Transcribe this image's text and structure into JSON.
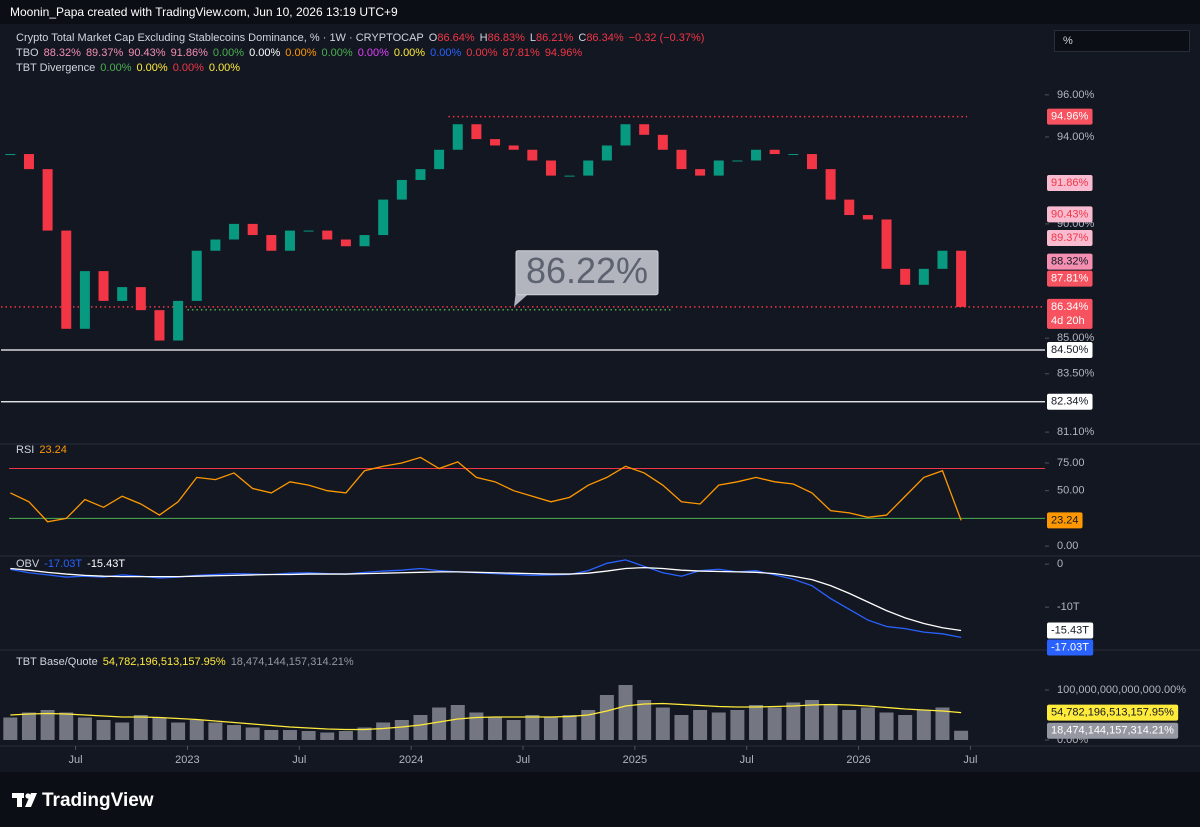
{
  "header": {
    "attribution": "Moonin_Papa created with TradingView.com, Jun 10, 2026 13:19 UTC+9",
    "scale_button": "%"
  },
  "legend": {
    "symbol": "Crypto Total Market Cap Excluding Stablecoins Dominance, % · 1W · CRYPTOCAP",
    "ohlc": [
      {
        "key": "O",
        "value": "86.64%"
      },
      {
        "key": "H",
        "value": "86.83%"
      },
      {
        "key": "L",
        "value": "86.21%"
      },
      {
        "key": "C",
        "value": "86.34%"
      }
    ],
    "change": "−0.32 (−0.37%)",
    "tbo": {
      "name": "TBO",
      "values": [
        "88.32%",
        "89.37%",
        "90.43%",
        "91.86%",
        "0.00%",
        "0.00%",
        "0.00%",
        "0.00%",
        "0.00%",
        "0.00%",
        "0.00%",
        "0.00%",
        "87.81%",
        "94.96%"
      ],
      "colors": [
        "#f48fb1",
        "#f48fb1",
        "#f48fb1",
        "#f48fb1",
        "#4caf50",
        "#ffffff",
        "#ff9800",
        "#4caf50",
        "#e040fb",
        "#ffeb3b",
        "#2962ff",
        "#f23645",
        "#f23645",
        "#f23645"
      ]
    },
    "divergence": {
      "name": "TBT Divergence",
      "values": [
        "0.00%",
        "0.00%",
        "0.00%",
        "0.00%"
      ],
      "colors": [
        "#4caf50",
        "#ffeb3b",
        "#f23645",
        "#ffeb3b"
      ]
    }
  },
  "chart_data": [
    {
      "type": "candlestick",
      "log_scale": true,
      "up_color": "#089981",
      "down_color": "#f23645",
      "x": [
        "2022-03",
        "2022-04",
        "2022-05",
        "2022-06",
        "2022-07",
        "2022-08",
        "2022-09",
        "2022-10",
        "2022-11",
        "2022-12",
        "2023-01",
        "2023-02",
        "2023-03",
        "2023-04",
        "2023-05",
        "2023-06",
        "2023-07",
        "2023-08",
        "2023-09",
        "2023-10",
        "2023-11",
        "2023-12",
        "2024-01",
        "2024-02",
        "2024-03",
        "2024-04",
        "2024-05",
        "2024-06",
        "2024-07",
        "2024-08",
        "2024-09",
        "2024-10",
        "2024-11",
        "2024-12",
        "2025-01",
        "2025-02",
        "2025-03",
        "2025-04",
        "2025-05",
        "2025-06",
        "2025-07",
        "2025-08",
        "2025-09",
        "2025-10",
        "2025-11",
        "2025-12",
        "2026-01",
        "2026-02",
        "2026-03",
        "2026-04",
        "2026-05",
        "2026-06"
      ],
      "values": [
        93.2,
        92.5,
        89.7,
        85.4,
        87.9,
        86.6,
        87.2,
        86.2,
        84.9,
        86.6,
        88.8,
        89.3,
        90.0,
        89.5,
        88.8,
        89.7,
        89.7,
        89.3,
        89.0,
        89.5,
        91.1,
        92.0,
        92.5,
        93.4,
        94.6,
        93.9,
        93.6,
        93.4,
        92.9,
        92.2,
        92.2,
        92.9,
        93.6,
        94.6,
        94.1,
        93.4,
        92.5,
        92.2,
        92.9,
        92.9,
        93.4,
        93.2,
        93.2,
        92.5,
        91.1,
        90.4,
        90.2,
        88.0,
        87.3,
        88.0,
        88.8,
        86.34
      ],
      "xlim": [
        "2022-03",
        "2026-11"
      ],
      "xticks": [
        {
          "value": "2022-07",
          "label": "Jul"
        },
        {
          "value": "2023-01",
          "label": "2023"
        },
        {
          "value": "2023-07",
          "label": "Jul"
        },
        {
          "value": "2024-01",
          "label": "2024"
        },
        {
          "value": "2024-07",
          "label": "Jul"
        },
        {
          "value": "2025-01",
          "label": "2025"
        },
        {
          "value": "2025-07",
          "label": "Jul"
        },
        {
          "value": "2026-01",
          "label": "2026"
        },
        {
          "value": "2026-07",
          "label": "Jul"
        }
      ],
      "ylim": [
        80.78,
        96.33
      ],
      "yticks": [
        {
          "value": 96,
          "label": "96.00%"
        },
        {
          "value": 94,
          "label": "94.00%"
        },
        {
          "value": 90,
          "label": "90.00%"
        },
        {
          "value": 85,
          "label": "85.00%"
        },
        {
          "value": 83.5,
          "label": "83.50%"
        },
        {
          "value": 81.1,
          "label": "81.10%"
        }
      ],
      "price_labels": [
        {
          "label": "94.96%",
          "value": 94.96,
          "bg": "#f7525f",
          "fg": "#ffffff",
          "line": "dotted",
          "from": "2024-03",
          "to": "2026-06"
        },
        {
          "label": "91.86%",
          "value": 91.86,
          "bg": "#f8bbd0",
          "fg": "#f23645"
        },
        {
          "label": "90.43%",
          "value": 90.43,
          "bg": "#f8bbd0",
          "fg": "#f23645"
        },
        {
          "label": "89.37%",
          "value": 89.37,
          "bg": "#f8bbd0",
          "fg": "#f23645"
        },
        {
          "label": "88.32%",
          "value": 88.32,
          "bg": "#f48fb1",
          "fg": "#131722"
        },
        {
          "label": "87.81%",
          "value": 87.81,
          "bg": "#f7525f",
          "fg": "#ffffff"
        },
        {
          "label": "86.34%",
          "value": 86.34,
          "bg": "#f7525f",
          "fg": "#ffffff",
          "line": "dotted",
          "from": "2022-03",
          "countdown": "4d 20h"
        },
        {
          "label": "84.50%",
          "value": 84.5,
          "bg": "#ffffff",
          "fg": "#131722",
          "line": "solid",
          "from": "2022-03"
        },
        {
          "label": "82.34%",
          "value": 82.34,
          "bg": "#ffffff",
          "fg": "#131722",
          "line": "solid",
          "from": "2022-03"
        }
      ],
      "annotation": {
        "label": "86.22%",
        "value": 86.22,
        "from": "2023-01",
        "to": "2025-03",
        "color": "#4caf50"
      }
    },
    {
      "type": "line",
      "title": "RSI",
      "series": [
        {
          "color": "#ff9800",
          "values": [
            48,
            40,
            22,
            25,
            42,
            35,
            45,
            38,
            28,
            40,
            62,
            60,
            66,
            52,
            48,
            58,
            55,
            50,
            48,
            68,
            72,
            75,
            80,
            70,
            76,
            62,
            58,
            50,
            45,
            40,
            44,
            55,
            62,
            72,
            66,
            55,
            40,
            38,
            55,
            58,
            62,
            58,
            56,
            48,
            32,
            30,
            26,
            28,
            45,
            62,
            68,
            23.24
          ]
        }
      ],
      "bands": [
        {
          "value": 70,
          "color": "#f23645"
        },
        {
          "value": 25,
          "color": "#4caf50"
        }
      ],
      "ylim": [
        -8,
        88.5
      ],
      "yticks": [
        {
          "value": 0,
          "label": "0.00"
        },
        {
          "value": 50,
          "label": "50.00"
        },
        {
          "value": 75,
          "label": "75.00"
        }
      ]
    },
    {
      "type": "line",
      "title": "OBV",
      "series": [
        {
          "color": "#2962ff",
          "label_fg": "#ffffff",
          "last_value_label": "-17.03T",
          "values": [
            -1.2,
            -2.0,
            -2.5,
            -3.0,
            -2.8,
            -3.0,
            -2.5,
            -2.8,
            -3.2,
            -3.0,
            -2.6,
            -2.4,
            -2.2,
            -2.3,
            -2.4,
            -2.1,
            -2.0,
            -2.2,
            -2.3,
            -1.9,
            -1.6,
            -1.4,
            -1.0,
            -1.5,
            -1.8,
            -2.0,
            -2.2,
            -2.4,
            -2.6,
            -2.5,
            -2.4,
            -1.5,
            0.2,
            1.0,
            -0.5,
            -2.0,
            -2.8,
            -1.5,
            -1.2,
            -1.8,
            -1.5,
            -2.5,
            -3.5,
            -5.0,
            -8.0,
            -10.5,
            -13.0,
            -14.5,
            -15.0,
            -15.8,
            -16.2,
            -17.03
          ]
        },
        {
          "color": "#ffffff",
          "label_fg": "#131722",
          "last_value_label": "-15.43T",
          "values": [
            -1.0,
            -1.4,
            -1.9,
            -2.3,
            -2.6,
            -2.8,
            -2.9,
            -2.9,
            -2.9,
            -2.9,
            -2.8,
            -2.7,
            -2.6,
            -2.5,
            -2.4,
            -2.4,
            -2.3,
            -2.3,
            -2.3,
            -2.2,
            -2.1,
            -2.0,
            -1.9,
            -1.8,
            -1.8,
            -1.9,
            -2.0,
            -2.1,
            -2.2,
            -2.3,
            -2.3,
            -2.1,
            -1.6,
            -1.0,
            -0.8,
            -1.0,
            -1.4,
            -1.6,
            -1.7,
            -1.8,
            -1.9,
            -2.2,
            -2.8,
            -3.6,
            -5.0,
            -6.8,
            -8.8,
            -10.8,
            -12.5,
            -13.8,
            -14.8,
            -15.43
          ]
        }
      ],
      "ylim": [
        -19.5,
        1.9
      ],
      "yticks": [
        0,
        {
          "value": -10,
          "label": "-10T"
        }
      ]
    },
    {
      "type": "bar",
      "title": "TBT Base/Quote",
      "series": [
        {
          "mark": "bar",
          "color": "#9598a1",
          "label_fg": "#ffffff",
          "last_value_label": "18,474,144,157,314.21%",
          "values": [
            45000000000000.0,
            55000000000000.0,
            60000000000000.0,
            55000000000000.0,
            45000000000000.0,
            40000000000000.0,
            35000000000000.0,
            50000000000000.0,
            45000000000000.0,
            35000000000000.0,
            40000000000000.0,
            35000000000000.0,
            30000000000000.0,
            25000000000000.0,
            20000000000000.0,
            20000000000000.0,
            18000000000000.0,
            15000000000000.0,
            18000000000000.0,
            25000000000000.0,
            35000000000000.0,
            40000000000000.0,
            50000000000000.0,
            65000000000000.0,
            70000000000000.0,
            55000000000000.0,
            45000000000000.0,
            40000000000000.0,
            50000000000000.0,
            45000000000000.0,
            50000000000000.0,
            60000000000000.0,
            90000000000000.0,
            110000000000000.0,
            80000000000000.0,
            65000000000000.0,
            50000000000000.0,
            60000000000000.0,
            55000000000000.0,
            60000000000000.0,
            70000000000000.0,
            65000000000000.0,
            75000000000000.0,
            80000000000000.0,
            70000000000000.0,
            60000000000000.0,
            65000000000000.0,
            55000000000000.0,
            50000000000000.0,
            60000000000000.0,
            65000000000000.0,
            18474144157314.21
          ]
        },
        {
          "mark": "line",
          "color": "#ffeb3b",
          "label_fg": "#131722",
          "last_value_label": "54,782,196,513,157.95%",
          "values": [
            50000000000000.0,
            52000000000000.0,
            53000000000000.0,
            52000000000000.0,
            50000000000000.0,
            48000000000000.0,
            46000000000000.0,
            46000000000000.0,
            45000000000000.0,
            43000000000000.0,
            41000000000000.0,
            38000000000000.0,
            35000000000000.0,
            32000000000000.0,
            29000000000000.0,
            26000000000000.0,
            24000000000000.0,
            22000000000000.0,
            21000000000000.0,
            21000000000000.0,
            23000000000000.0,
            26000000000000.0,
            30000000000000.0,
            36000000000000.0,
            42000000000000.0,
            45000000000000.0,
            46000000000000.0,
            46000000000000.0,
            46000000000000.0,
            46000000000000.0,
            47000000000000.0,
            50000000000000.0,
            58000000000000.0,
            68000000000000.0,
            72000000000000.0,
            73000000000000.0,
            71000000000000.0,
            69000000000000.0,
            67000000000000.0,
            66000000000000.0,
            66000000000000.0,
            67000000000000.0,
            68000000000000.0,
            70000000000000.0,
            71000000000000.0,
            70000000000000.0,
            68000000000000.0,
            65000000000000.0,
            62000000000000.0,
            60000000000000.0,
            58000000000000.0,
            54782196513157.95
          ]
        }
      ],
      "ylim": [
        0,
        170000000000000.0
      ],
      "yticks": [
        {
          "value": 0,
          "label": "0.00%"
        },
        {
          "value": 100000000000000.0,
          "label": "100,000,000,000,000.00%"
        }
      ]
    }
  ],
  "footer": {
    "logo": "TradingView"
  }
}
